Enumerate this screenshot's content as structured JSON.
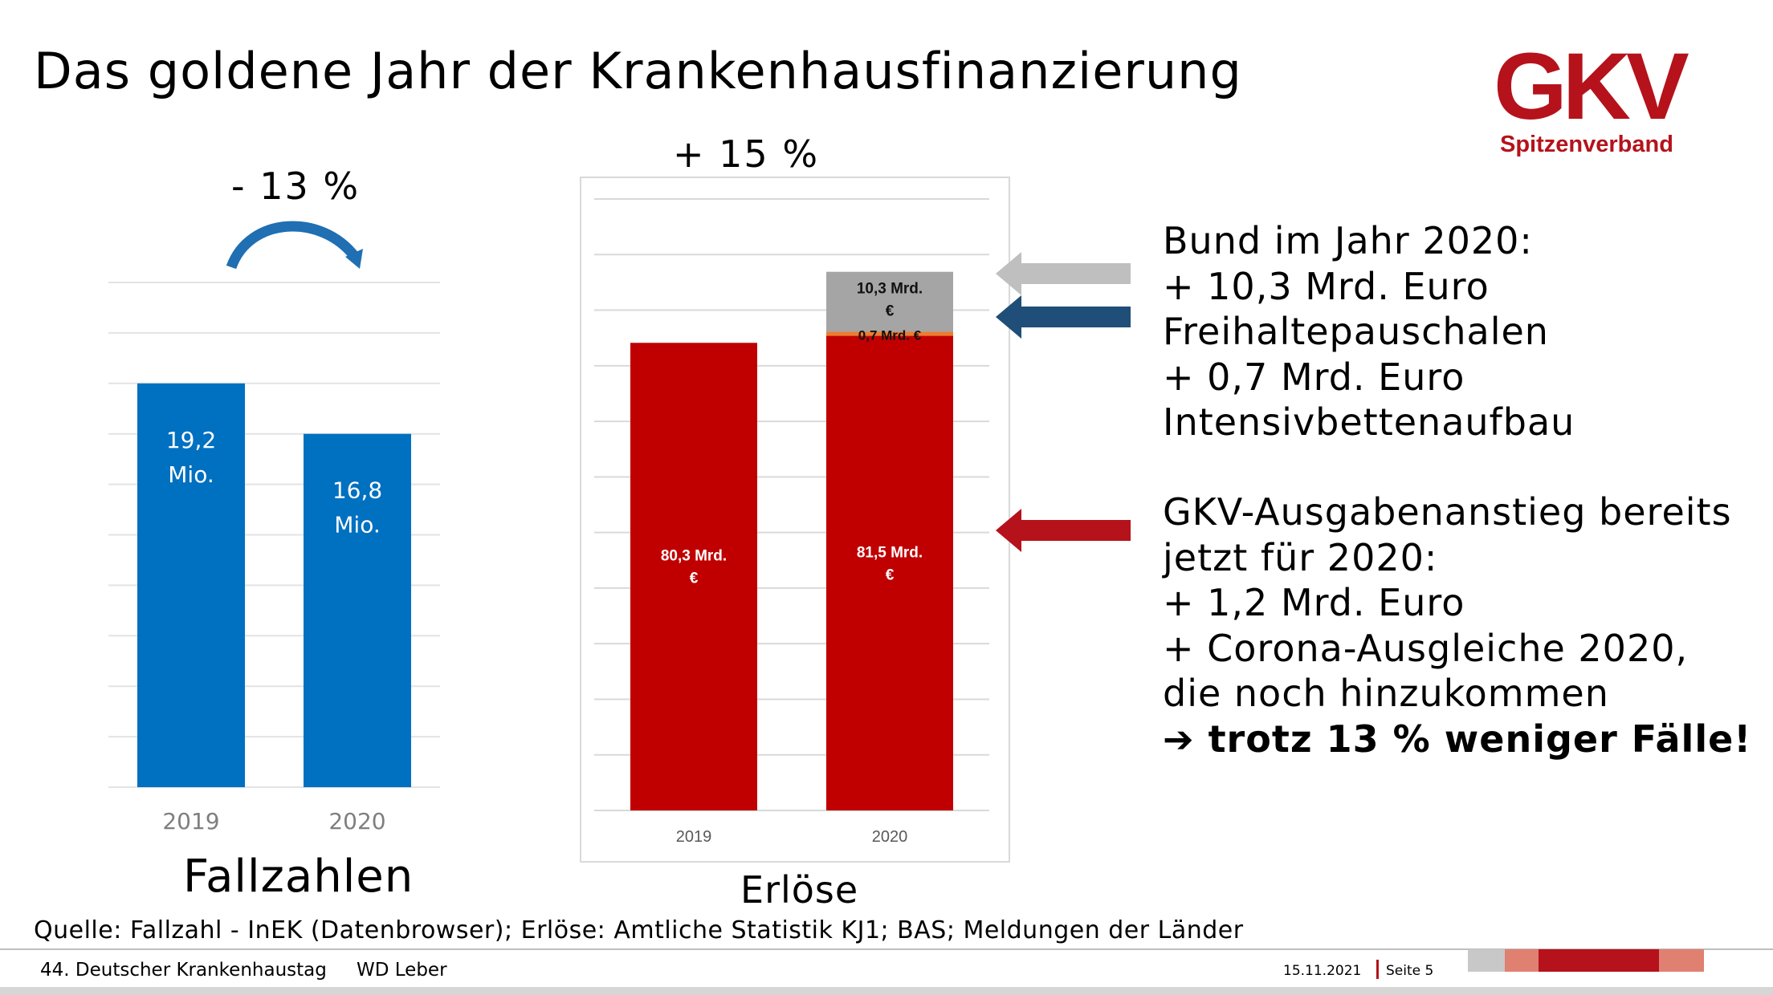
{
  "title": "Das goldene Jahr der Krankenhausfinanzierung",
  "logo": {
    "text": "GKV",
    "subtitle": "Spitzenverband"
  },
  "change_left": "- 13 %",
  "change_right": "+ 15 %",
  "chart_labels": {
    "left": "Fallzahlen",
    "right": "Erlöse"
  },
  "chart_data": [
    {
      "type": "bar",
      "title": "Fallzahlen",
      "categories": [
        "2019",
        "2020"
      ],
      "values": [
        19.2,
        16.8
      ],
      "data_labels": [
        [
          "19,2",
          "Mio."
        ],
        [
          "16,8",
          "Mio."
        ]
      ],
      "unit": "Mio.",
      "ylim": [
        0,
        24
      ],
      "gridlines": 10,
      "color": "#0070c0"
    },
    {
      "type": "bar",
      "stacked": true,
      "title": "Erlöse",
      "categories": [
        "2019",
        "2020"
      ],
      "ylim": [
        0,
        105
      ],
      "gridlines": 11,
      "series": [
        {
          "name": "Erlöse",
          "values": [
            80.3,
            81.5
          ],
          "color": "#c00000",
          "labels": [
            [
              "80,3 Mrd.",
              "€"
            ],
            [
              "81,5 Mrd.",
              "€"
            ]
          ]
        },
        {
          "name": "Intensivbettenaufbau",
          "values": [
            0,
            0.7
          ],
          "color": "#ed7d31",
          "labels": [
            [],
            [
              "0,7 Mrd. €"
            ]
          ]
        },
        {
          "name": "Freihaltepauschalen",
          "values": [
            0,
            10.3
          ],
          "color": "#a5a5a5",
          "labels": [
            [],
            [
              "10,3 Mrd.",
              "€"
            ]
          ]
        }
      ]
    }
  ],
  "arrows": {
    "grey": "#bfbfbf",
    "blue": "#1f4e79",
    "red": "#b5121b"
  },
  "side_text_1": [
    "Bund im Jahr 2020:",
    "+ 10,3 Mrd. Euro",
    "Freihaltepauschalen",
    "+ 0,7 Mrd. Euro",
    "Intensivbettenaufbau"
  ],
  "side_text_2": [
    "GKV-Ausgabenanstieg bereits",
    "jetzt für 2020:",
    "+ 1,2 Mrd. Euro",
    "+ Corona-Ausgleiche 2020,",
    "die noch hinzukommen"
  ],
  "side_emphasis": {
    "arrow": "➔",
    "text": "trotz 13 % weniger Fälle!"
  },
  "source": "Quelle: Fallzahl - InEK (Datenbrowser); Erlöse: Amtliche Statistik KJ1; BAS; Meldungen der Länder",
  "footer": {
    "event": "44. Deutscher Krankenhaustag",
    "author": "WD Leber",
    "date": "15.11.2021",
    "page": "Seite 5"
  },
  "colors": {
    "brand_red": "#b5121b",
    "blue": "#0070c0",
    "chart_red": "#c00000",
    "curve_blue": "#1f6fb2",
    "curve_red": "#a0101e",
    "footer_blocks": [
      "#c8c8c8",
      "#e08070",
      "#b5121b",
      "#e08070"
    ]
  }
}
